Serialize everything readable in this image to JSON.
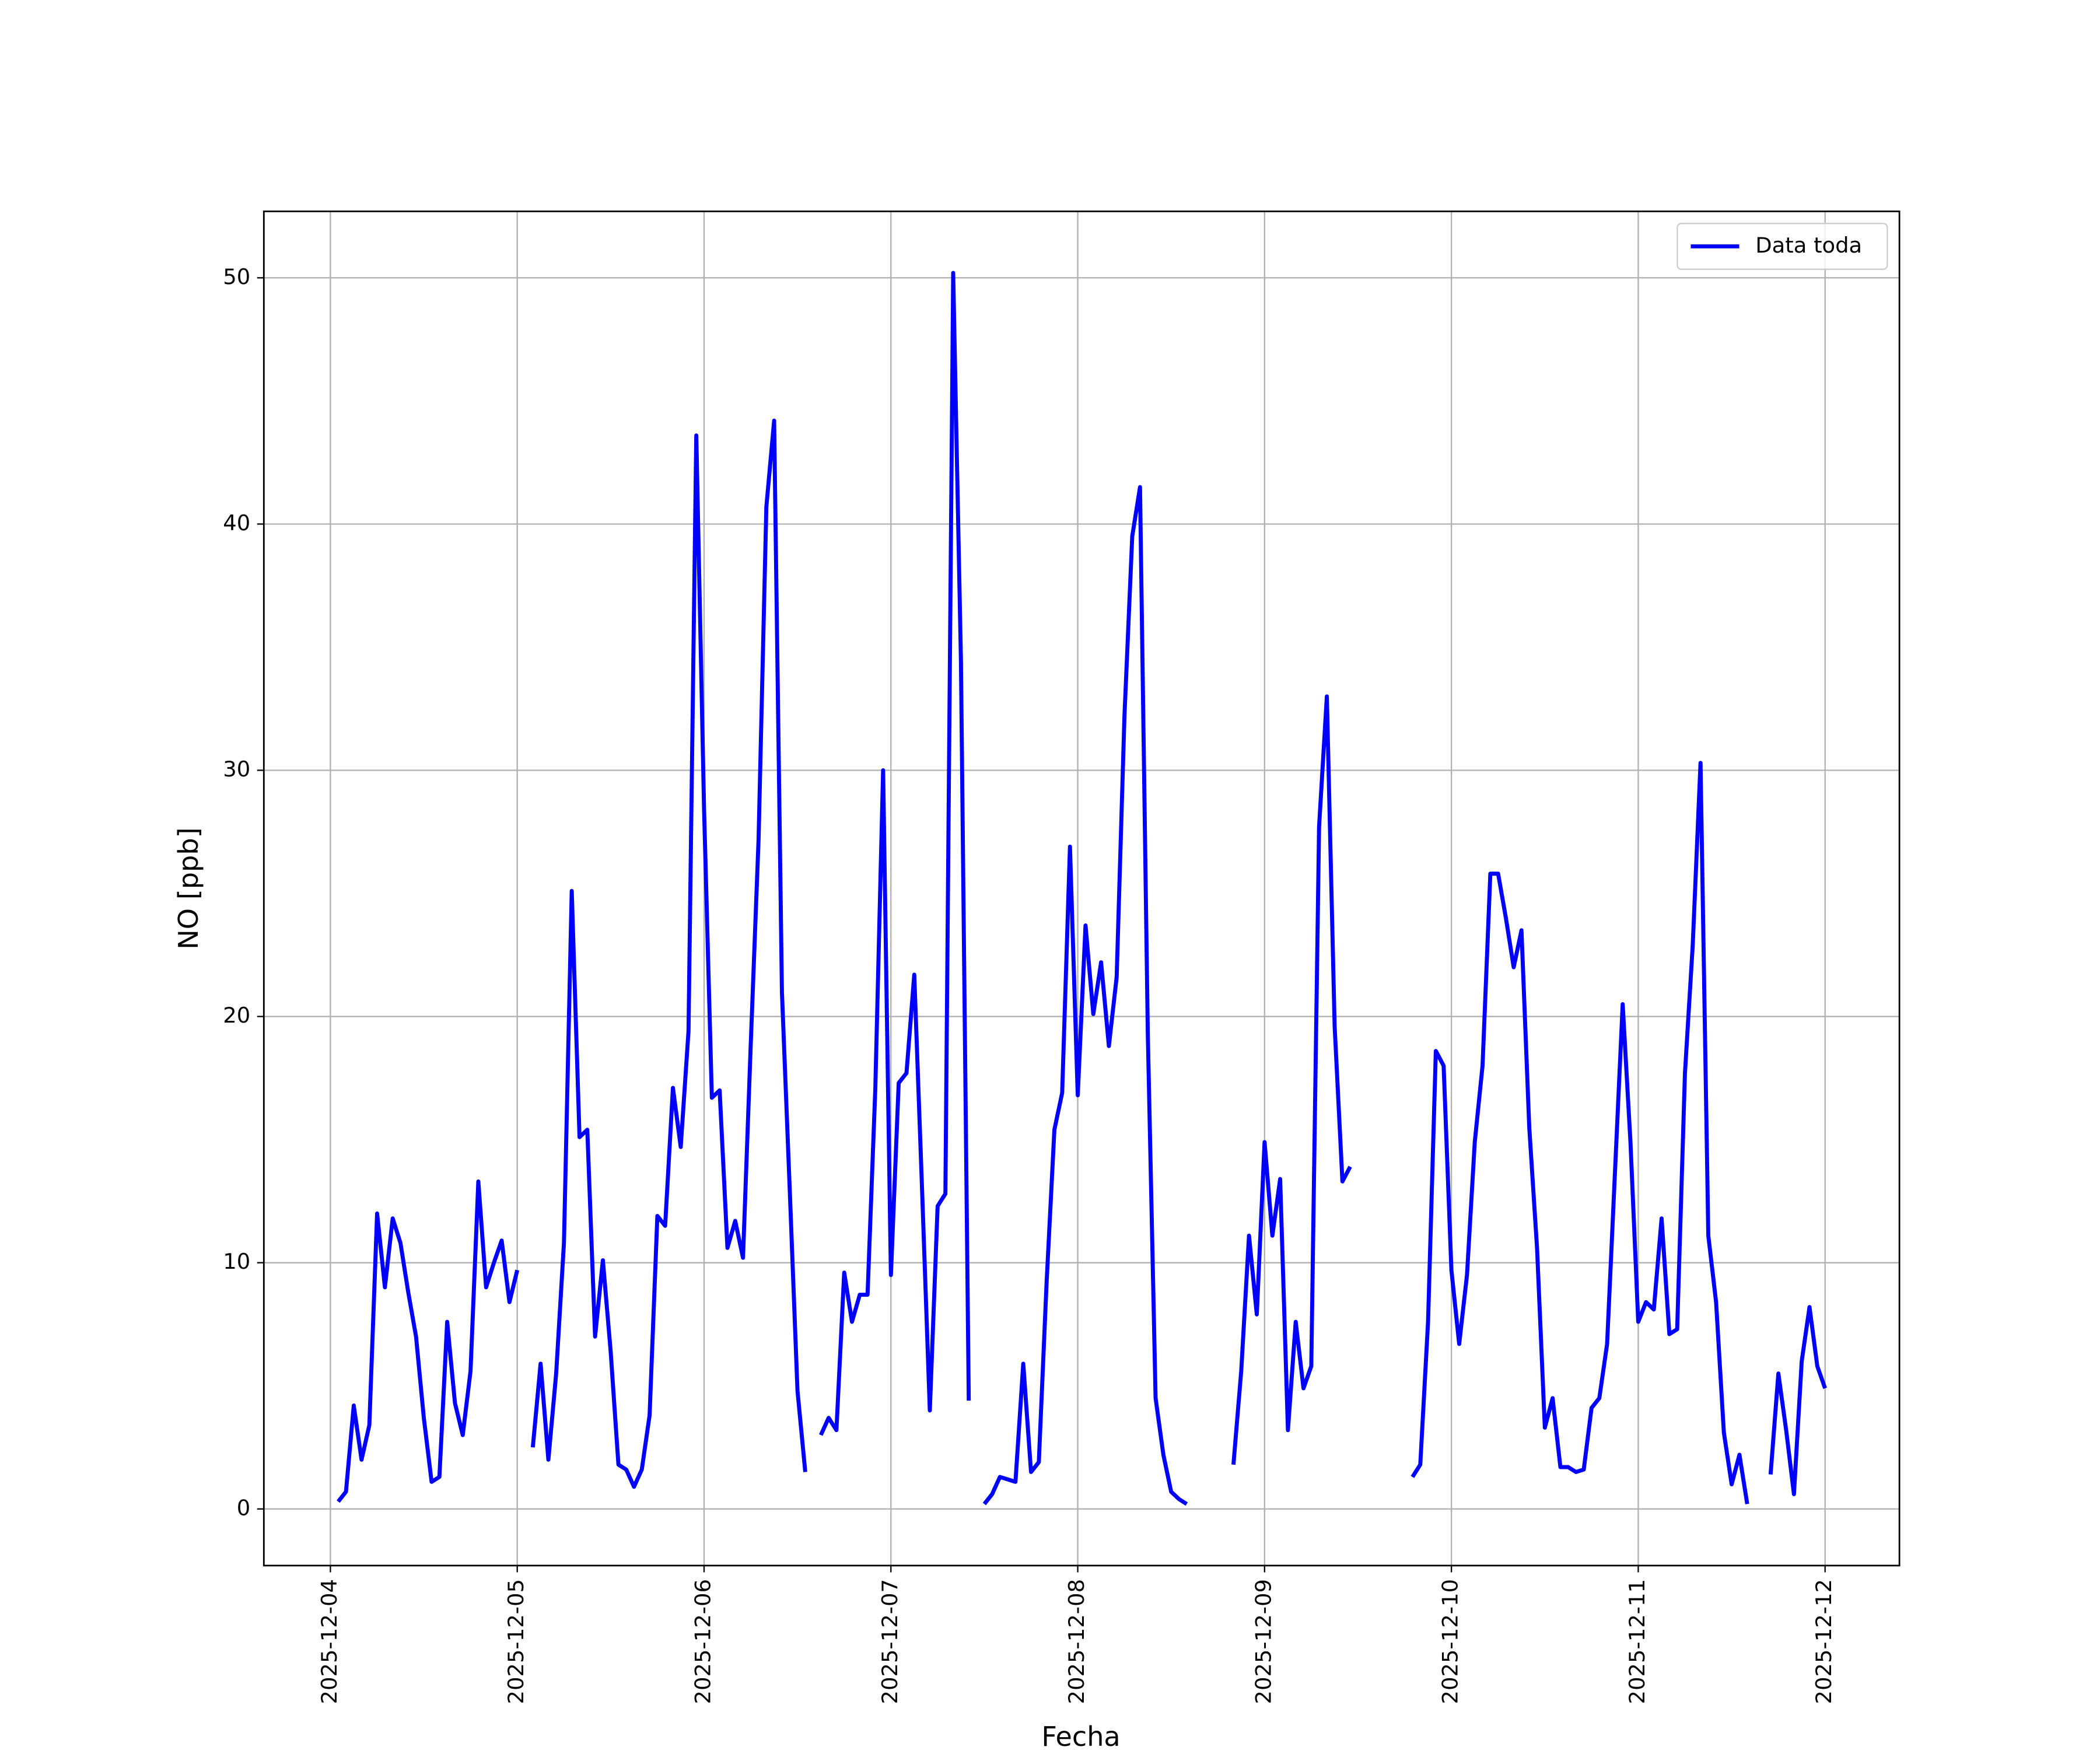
{
  "chart_data": {
    "type": "line",
    "x_label": "Fecha",
    "y_label": "NO [ppb]",
    "x": [
      "2025-12-04 01:00",
      "2025-12-04 02:00",
      "2025-12-04 03:00",
      "2025-12-04 04:00",
      "2025-12-04 05:00",
      "2025-12-04 06:00",
      "2025-12-04 07:00",
      "2025-12-04 08:00",
      "2025-12-04 09:00",
      "2025-12-04 10:00",
      "2025-12-04 11:00",
      "2025-12-04 12:00",
      "2025-12-04 13:00",
      "2025-12-04 14:00",
      "2025-12-04 15:00",
      "2025-12-04 16:00",
      "2025-12-04 17:00",
      "2025-12-04 18:00",
      "2025-12-04 19:00",
      "2025-12-04 20:00",
      "2025-12-04 21:00",
      "2025-12-04 22:00",
      "2025-12-04 23:00",
      "2025-12-05 00:00",
      "2025-12-05 01:00",
      "2025-12-05 02:00",
      "2025-12-05 03:00",
      "2025-12-05 04:00",
      "2025-12-05 05:00",
      "2025-12-05 06:00",
      "2025-12-05 07:00",
      "2025-12-05 08:00",
      "2025-12-05 09:00",
      "2025-12-05 10:00",
      "2025-12-05 11:00",
      "2025-12-05 12:00",
      "2025-12-05 13:00",
      "2025-12-05 14:00",
      "2025-12-05 15:00",
      "2025-12-05 16:00",
      "2025-12-05 17:00",
      "2025-12-05 18:00",
      "2025-12-05 19:00",
      "2025-12-05 20:00",
      "2025-12-05 21:00",
      "2025-12-05 22:00",
      "2025-12-05 23:00",
      "2025-12-06 00:00",
      "2025-12-06 01:00",
      "2025-12-06 02:00",
      "2025-12-06 03:00",
      "2025-12-06 04:00",
      "2025-12-06 05:00",
      "2025-12-06 06:00",
      "2025-12-06 07:00",
      "2025-12-06 08:00",
      "2025-12-06 09:00",
      "2025-12-06 10:00",
      "2025-12-06 11:00",
      "2025-12-06 12:00",
      "2025-12-06 13:00",
      "2025-12-06 14:00",
      "2025-12-06 15:00",
      "2025-12-06 16:00",
      "2025-12-06 17:00",
      "2025-12-06 18:00",
      "2025-12-06 19:00",
      "2025-12-06 20:00",
      "2025-12-06 21:00",
      "2025-12-06 22:00",
      "2025-12-06 23:00",
      "2025-12-07 00:00",
      "2025-12-07 01:00",
      "2025-12-07 02:00",
      "2025-12-07 03:00",
      "2025-12-07 04:00",
      "2025-12-07 05:00",
      "2025-12-07 06:00",
      "2025-12-07 07:00",
      "2025-12-07 08:00",
      "2025-12-07 09:00",
      "2025-12-07 10:00",
      "2025-12-07 11:00",
      "2025-12-07 12:00",
      "2025-12-07 13:00",
      "2025-12-07 14:00",
      "2025-12-07 15:00",
      "2025-12-07 16:00",
      "2025-12-07 17:00",
      "2025-12-07 18:00",
      "2025-12-07 19:00",
      "2025-12-07 20:00",
      "2025-12-07 21:00",
      "2025-12-07 22:00",
      "2025-12-07 23:00",
      "2025-12-08 00:00",
      "2025-12-08 01:00",
      "2025-12-08 02:00",
      "2025-12-08 03:00",
      "2025-12-08 04:00",
      "2025-12-08 05:00",
      "2025-12-08 06:00",
      "2025-12-08 07:00",
      "2025-12-08 08:00",
      "2025-12-08 09:00",
      "2025-12-08 10:00",
      "2025-12-08 11:00",
      "2025-12-08 12:00",
      "2025-12-08 13:00",
      "2025-12-08 14:00",
      "2025-12-08 15:00",
      "2025-12-08 20:00",
      "2025-12-08 21:00",
      "2025-12-08 22:00",
      "2025-12-08 23:00",
      "2025-12-09 00:00",
      "2025-12-09 01:00",
      "2025-12-09 02:00",
      "2025-12-09 03:00",
      "2025-12-09 04:00",
      "2025-12-09 05:00",
      "2025-12-09 06:00",
      "2025-12-09 07:00",
      "2025-12-09 08:00",
      "2025-12-09 09:00",
      "2025-12-09 10:00",
      "2025-12-09 11:00",
      "2025-12-09 12:00",
      "2025-12-09 19:00",
      "2025-12-09 20:00",
      "2025-12-09 21:00",
      "2025-12-09 22:00",
      "2025-12-09 23:00",
      "2025-12-10 00:00",
      "2025-12-10 01:00",
      "2025-12-10 02:00",
      "2025-12-10 03:00",
      "2025-12-10 04:00",
      "2025-12-10 05:00",
      "2025-12-10 06:00",
      "2025-12-10 07:00",
      "2025-12-10 08:00",
      "2025-12-10 09:00",
      "2025-12-10 10:00",
      "2025-12-10 11:00",
      "2025-12-10 12:00",
      "2025-12-10 13:00",
      "2025-12-10 14:00",
      "2025-12-10 15:00",
      "2025-12-10 16:00",
      "2025-12-10 17:00",
      "2025-12-10 18:00",
      "2025-12-10 19:00",
      "2025-12-10 20:00",
      "2025-12-10 21:00",
      "2025-12-10 22:00",
      "2025-12-10 23:00",
      "2025-12-11 00:00",
      "2025-12-11 01:00",
      "2025-12-11 02:00",
      "2025-12-11 03:00",
      "2025-12-11 04:00",
      "2025-12-11 05:00",
      "2025-12-11 06:00",
      "2025-12-11 07:00",
      "2025-12-11 08:00",
      "2025-12-11 09:00",
      "2025-12-11 10:00",
      "2025-12-11 11:00",
      "2025-12-11 12:00",
      "2025-12-11 13:00",
      "2025-12-11 14:00",
      "2025-12-11 15:00",
      "2025-12-11 17:00",
      "2025-12-11 18:00",
      "2025-12-11 19:00",
      "2025-12-11 20:00",
      "2025-12-11 21:00",
      "2025-12-11 22:00",
      "2025-12-11 23:00",
      "2025-12-12 00:00"
    ],
    "series": [
      {
        "name": "Data toda",
        "color": "#0000ff",
        "values": [
          0.3,
          0.7,
          4.2,
          2.0,
          3.4,
          12.0,
          9.0,
          11.8,
          10.8,
          8.8,
          7.0,
          3.7,
          1.1,
          1.3,
          7.6,
          4.3,
          3.0,
          5.6,
          13.3,
          9.0,
          10.0,
          10.9,
          8.4,
          9.7,
          null,
          2.5,
          5.9,
          2.0,
          5.5,
          10.8,
          25.1,
          15.1,
          15.4,
          7.0,
          10.1,
          6.4,
          1.8,
          1.6,
          0.9,
          1.6,
          3.8,
          11.9,
          11.5,
          17.1,
          14.7,
          19.4,
          43.6,
          28.4,
          16.7,
          17.0,
          10.6,
          11.7,
          10.2,
          18.9,
          27.2,
          40.7,
          44.2,
          21.0,
          13.0,
          4.8,
          1.5,
          null,
          3.0,
          3.7,
          3.2,
          9.6,
          7.6,
          8.7,
          8.7,
          17.1,
          30.0,
          9.5,
          17.3,
          17.7,
          21.7,
          13.0,
          4.0,
          12.3,
          12.8,
          50.2,
          34.4,
          4.4,
          null,
          0.2,
          0.6,
          1.3,
          1.2,
          1.1,
          5.9,
          1.5,
          1.9,
          9.2,
          15.4,
          16.9,
          26.9,
          16.8,
          23.7,
          20.1,
          22.2,
          18.8,
          21.6,
          32.2,
          39.5,
          41.5,
          19.3,
          4.5,
          2.2,
          0.7,
          0.4,
          0.2,
          null,
          1.8,
          5.6,
          11.1,
          7.9,
          14.9,
          11.1,
          13.4,
          3.2,
          7.6,
          4.9,
          5.8,
          27.7,
          33.0,
          19.6,
          13.3,
          13.9,
          null,
          1.3,
          1.8,
          7.6,
          18.6,
          18.0,
          9.7,
          6.7,
          9.5,
          14.9,
          18.0,
          25.8,
          25.8,
          24.0,
          22.0,
          23.5,
          15.5,
          10.6,
          3.3,
          4.5,
          1.7,
          1.7,
          1.5,
          1.6,
          4.1,
          4.5,
          6.7,
          13.6,
          20.5,
          14.9,
          7.6,
          8.4,
          8.1,
          11.8,
          7.1,
          7.3,
          17.7,
          22.9,
          30.3,
          11.1,
          8.4,
          3.1,
          1.0,
          2.2,
          0.2,
          null,
          1.4,
          5.5,
          3.2,
          0.6,
          6.0,
          8.2,
          5.8,
          4.9
        ]
      }
    ],
    "xlim": [
      "2025-12-03 15:27",
      "2025-12-12 09:33"
    ],
    "xticks": [
      "2025-12-04",
      "2025-12-05",
      "2025-12-06",
      "2025-12-07",
      "2025-12-08",
      "2025-12-09",
      "2025-12-10",
      "2025-12-11",
      "2025-12-12"
    ],
    "ylim": [
      -2.3,
      52.7
    ],
    "yticks": [
      0,
      10,
      20,
      30,
      40,
      50
    ],
    "grid": true,
    "legend": "upper right"
  }
}
